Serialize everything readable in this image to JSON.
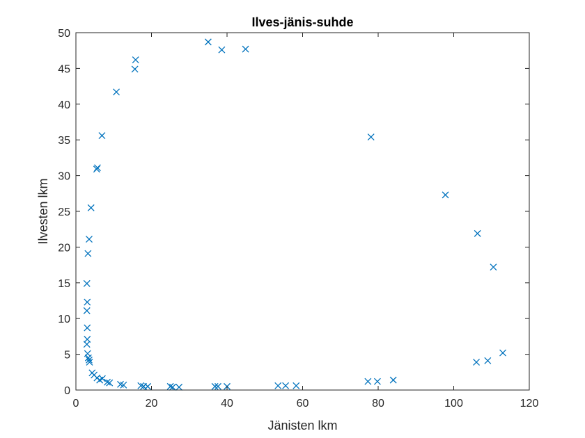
{
  "chart_data": {
    "type": "scatter",
    "title": "Ilves-jänis-suhde",
    "xlabel": "Jänisten lkm",
    "ylabel": "Ilvesten lkm",
    "xlim": [
      0,
      120
    ],
    "ylim": [
      0,
      50
    ],
    "x_ticks": [
      0,
      20,
      40,
      60,
      80,
      100,
      120
    ],
    "y_ticks": [
      0,
      5,
      10,
      15,
      20,
      25,
      30,
      35,
      40,
      45,
      50
    ],
    "grid": false,
    "marker": "x",
    "color": "#0072BD",
    "series": [
      {
        "points": [
          [
            3,
            8.7
          ],
          [
            2.9,
            11.1
          ],
          [
            3,
            12.3
          ],
          [
            2.9,
            14.9
          ],
          [
            3.2,
            19.1
          ],
          [
            3.5,
            21.1
          ],
          [
            4,
            25.5
          ],
          [
            5.5,
            30.9
          ],
          [
            5.7,
            31.1
          ],
          [
            6.9,
            35.6
          ],
          [
            10.7,
            41.7
          ],
          [
            15.6,
            44.9
          ],
          [
            15.8,
            46.2
          ],
          [
            35,
            48.7
          ],
          [
            38.6,
            47.6
          ],
          [
            44.9,
            47.7
          ],
          [
            78.1,
            35.4
          ],
          [
            97.8,
            27.3
          ],
          [
            106.3,
            21.9
          ],
          [
            110.5,
            17.2
          ],
          [
            113,
            5.2
          ],
          [
            109,
            4.1
          ],
          [
            106,
            3.9
          ],
          [
            84,
            1.4
          ],
          [
            79.8,
            1.2
          ],
          [
            77.3,
            1.2
          ],
          [
            58.3,
            0.6
          ],
          [
            55.5,
            0.6
          ],
          [
            53.5,
            0.6
          ],
          [
            40,
            0.5
          ],
          [
            37.6,
            0.5
          ],
          [
            36.8,
            0.5
          ],
          [
            27.3,
            0.4
          ],
          [
            25.6,
            0.4
          ],
          [
            25,
            0.5
          ],
          [
            19,
            0.5
          ],
          [
            17.9,
            0.5
          ],
          [
            17.2,
            0.6
          ],
          [
            12.6,
            0.7
          ],
          [
            11.8,
            0.8
          ],
          [
            8.9,
            1
          ],
          [
            8.3,
            1.1
          ],
          [
            7,
            1.6
          ],
          [
            6.3,
            1.4
          ],
          [
            5.6,
            1.7
          ],
          [
            4.8,
            2.1
          ],
          [
            4.3,
            2.4
          ],
          [
            3.6,
            3.9
          ],
          [
            3.5,
            4.2
          ],
          [
            3.3,
            4.5
          ],
          [
            3.1,
            5.1
          ],
          [
            2.9,
            6.4
          ],
          [
            3,
            7.1
          ]
        ]
      }
    ]
  }
}
